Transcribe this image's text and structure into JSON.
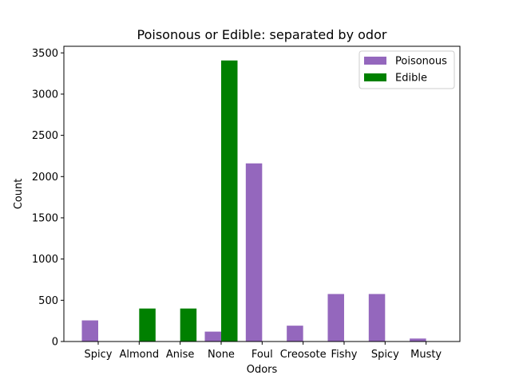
{
  "chart_data": {
    "type": "bar",
    "title": "Poisonous or Edible: separated by odor",
    "xlabel": "Odors",
    "ylabel": "Count",
    "categories": [
      "Spicy",
      "Almond",
      "Anise",
      "None",
      "Foul",
      "Creosote",
      "Fishy",
      "Spicy",
      "Musty"
    ],
    "series": [
      {
        "name": "Poisonous",
        "color": "#9467bd",
        "values": [
          256,
          0,
          0,
          120,
          2160,
          192,
          576,
          576,
          36
        ]
      },
      {
        "name": "Edible",
        "color": "#008000",
        "values": [
          0,
          400,
          400,
          3408,
          0,
          0,
          0,
          0,
          0
        ]
      }
    ],
    "ylim": [
      0,
      3580
    ],
    "yticks": [
      0,
      500,
      1000,
      1500,
      2000,
      2500,
      3000,
      3500
    ],
    "legend_position": "top-right",
    "grid": false
  }
}
